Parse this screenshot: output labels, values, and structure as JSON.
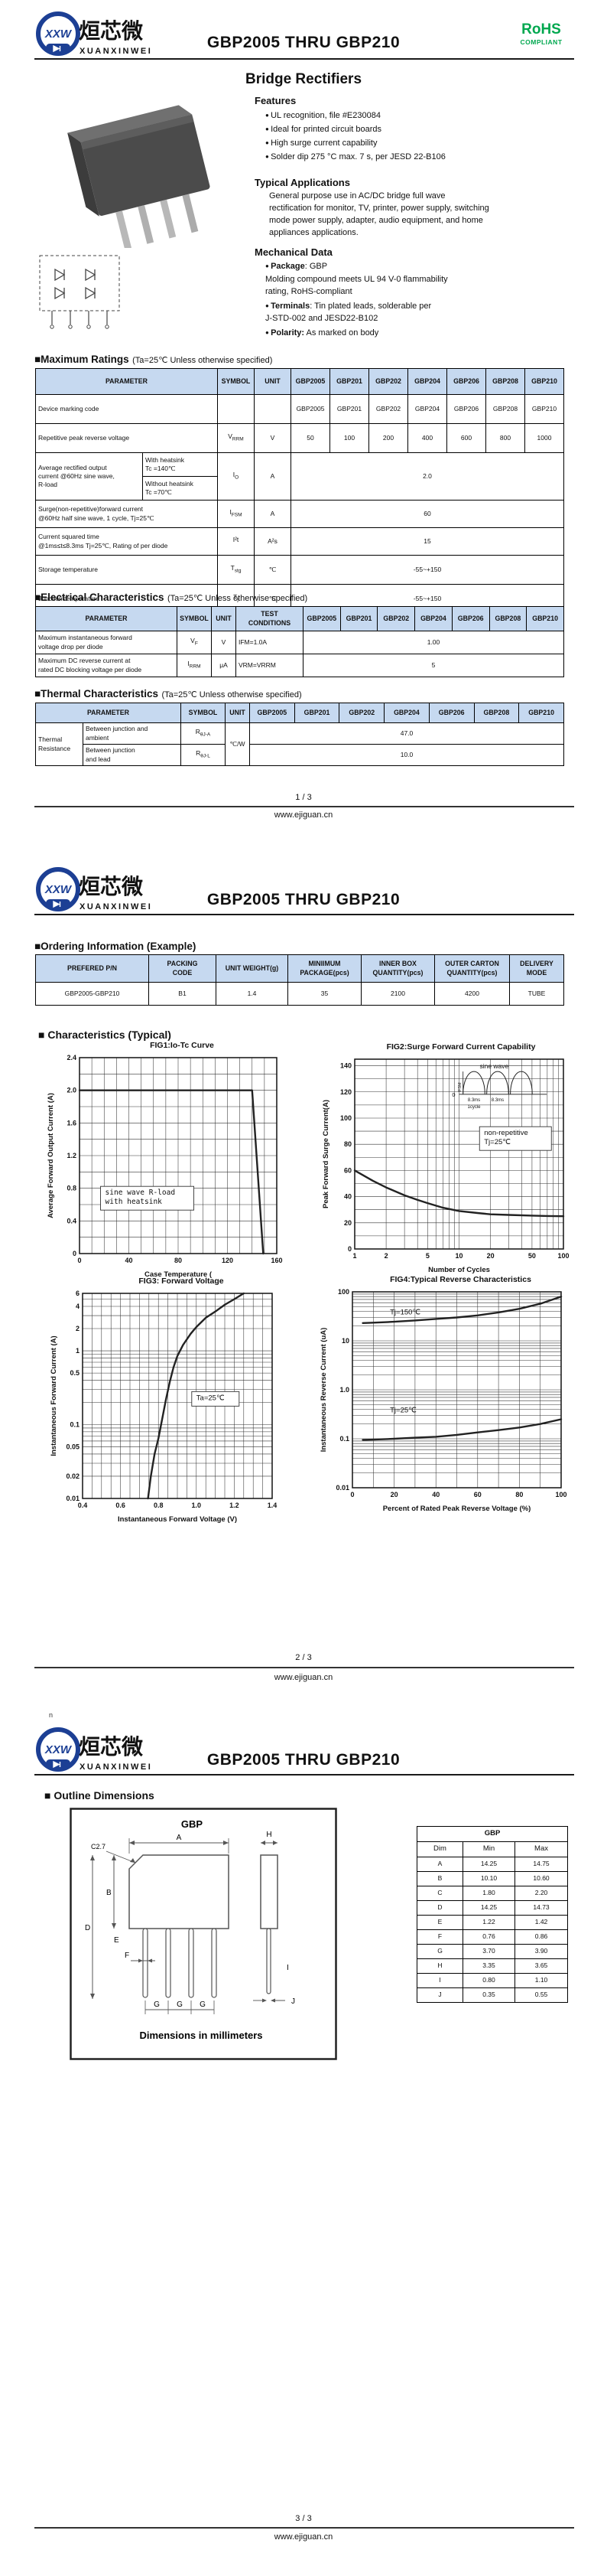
{
  "brand": {
    "badge": "XXW",
    "cn": "烜芯微",
    "en": "XUANXINWEI",
    "title": "GBP2005 THRU GBP210",
    "rohs": "RoHS",
    "compliant": "COMPLIANT"
  },
  "footer": {
    "pages": [
      "1 / 3",
      "2 / 3",
      "3 / 3"
    ],
    "site": "www.ejiguan.cn"
  },
  "parts": [
    "GBP2005",
    "GBP201",
    "GBP202",
    "GBP204",
    "GBP206",
    "GBP208",
    "GBP210"
  ],
  "tables": {
    "headers": {
      "parameter": "PARAMETER",
      "symbol": "SYMBOL",
      "unit": "UNIT",
      "test": "TEST\nCONDITIONS"
    }
  },
  "page1": {
    "main_title": "Bridge Rectifiers",
    "features": {
      "heading": "Features",
      "items": [
        "UL recognition, file #E230084",
        "Ideal for printed circuit boards",
        "High surge current capability",
        "Solder dip 275 °C max. 7 s, per JESD 22-B106"
      ]
    },
    "typical_applications": {
      "heading": "Typical Applications",
      "text": "General purpose use in AC/DC bridge full wave\nrectification for monitor, TV, printer, power supply, switching\n mode power supply, adapter, audio equipment, and home\nappliances applications."
    },
    "mechanical_data": {
      "heading": "Mechanical Data",
      "items": [
        {
          "label": "Package",
          "rest": ": GBP\nMolding compound meets UL 94 V-0 flammability\nrating, RoHS-compliant"
        },
        {
          "label": "Terminals",
          "rest": ": Tin plated leads, solderable  per\nJ-STD-002 and JESD22-B102"
        },
        {
          "label": "Polarity:",
          "rest": " As marked on body"
        }
      ]
    },
    "max_ratings": {
      "heading": "■Maximum Ratings",
      "cond": "(Ta=25℃ Unless otherwise specified)",
      "rows": {
        "marking": {
          "param": "Device marking code",
          "values": [
            "GBP2005",
            "GBP201",
            "GBP202",
            "GBP204",
            "GBP206",
            "GBP208",
            "GBP210"
          ]
        },
        "vrrm": {
          "param": "Repetitive peak reverse voltage",
          "sym": {
            "b": "V",
            "s": "RRM"
          },
          "unit": "V",
          "values": [
            "50",
            "100",
            "200",
            "400",
            "600",
            "800",
            "1000"
          ]
        },
        "io": {
          "param": "Average rectified output\ncurrent @60Hz sine wave,\nR-load",
          "cond1": "With heatsink\nTc =140℃",
          "cond2": "Without heatsink\nTc =70℃",
          "sym": {
            "b": "I",
            "s": "O"
          },
          "unit": "A",
          "value": "2.0"
        },
        "ifsm": {
          "param": "Surge(non-repetitive)forward current\n@60Hz half sine wave, 1 cycle, Tj=25℃",
          "sym": {
            "b": "I",
            "s": "FSM"
          },
          "unit": "A",
          "value": "60"
        },
        "i2t": {
          "param": "Current squared time\n@1ms≤t≤8.3ms Tj=25℃, Rating of per diode",
          "sym": {
            "b": "I²t",
            "s": ""
          },
          "unit": "A²s",
          "value": "15"
        },
        "tstg": {
          "param": "Storage temperature",
          "sym": {
            "b": "T",
            "s": "stg"
          },
          "unit": "℃",
          "value": "-55~+150"
        },
        "tj": {
          "param": "Junction temperature",
          "sym": {
            "b": "T",
            "s": "j"
          },
          "unit": "℃",
          "value": "-55~+150"
        }
      }
    },
    "electrical": {
      "heading": "■Electrical Characteristics",
      "cond": "(Ta=25℃ Unless otherwise specified)",
      "rows": [
        {
          "param": "Maximum instantaneous forward\nvoltage drop per diode",
          "sym": {
            "b": "V",
            "s": "F"
          },
          "unit": "V",
          "test": "IFM=1.0A",
          "value": "1.00"
        },
        {
          "param": "Maximum DC reverse current at\nrated DC blocking voltage per diode",
          "sym": {
            "b": "I",
            "s": "RRM"
          },
          "unit": "μA",
          "test": "VRM=VRRM",
          "value": "5"
        }
      ]
    },
    "thermal": {
      "heading": "■Thermal Characteristics",
      "cond": "(Ta=25℃ Unless otherwise specified)",
      "group": "Thermal\nResistance",
      "unit": "℃/W",
      "rows": [
        {
          "param": "Between junction and\nambient",
          "sym": {
            "b": "R",
            "s": "θJ-A"
          },
          "value": "47.0"
        },
        {
          "param": "Between junction\nand lead",
          "sym": {
            "b": "R",
            "s": "θJ-L"
          },
          "value": "10.0"
        }
      ]
    }
  },
  "page2": {
    "ordering": {
      "heading": "■Ordering Information (Example)",
      "headers": [
        "PREFERED P/N",
        "PACKING\nCODE",
        "UNIT WEIGHT(g)",
        "MINIIMUM\nPACKAGE(pcs)",
        "INNER BOX\nQUANTITY(pcs)",
        "OUTER CARTON\nQUANTITY(pcs)",
        "DELIVERY MODE"
      ],
      "row": [
        "GBP2005-GBP210",
        "B1",
        "1.4",
        "35",
        "2100",
        "4200",
        "TUBE"
      ]
    },
    "characteristics_heading": "■ Characteristics (Typical)"
  },
  "page3": {
    "stray": "n",
    "outline": {
      "heading": "■ Outline Dimensions",
      "labels": {
        "pkg": "GBP",
        "a": "A",
        "b": "B",
        "c": "C2.7",
        "d": "D",
        "e": "E",
        "f": "F",
        "g": "G",
        "h": "H",
        "i": "I",
        "j": "J",
        "caption": "Dimensions in millimeters"
      },
      "dim_table": {
        "title": "GBP",
        "headers": [
          "Dim",
          "Min",
          "Max"
        ],
        "rows": [
          {
            "d": "A",
            "min": "14.25",
            "max": "14.75"
          },
          {
            "d": "B",
            "min": "10.10",
            "max": "10.60"
          },
          {
            "d": "C",
            "min": "1.80",
            "max": "2.20"
          },
          {
            "d": "D",
            "min": "14.25",
            "max": "14.73"
          },
          {
            "d": "E",
            "min": "1.22",
            "max": "1.42"
          },
          {
            "d": "F",
            "min": "0.76",
            "max": "0.86"
          },
          {
            "d": "G",
            "min": "3.70",
            "max": "3.90"
          },
          {
            "d": "H",
            "min": "3.35",
            "max": "3.65"
          },
          {
            "d": "I",
            "min": "0.80",
            "max": "1.10"
          },
          {
            "d": "J",
            "min": "0.35",
            "max": "0.55"
          }
        ]
      }
    }
  },
  "chart_data": [
    {
      "id": "fig1",
      "type": "line",
      "title": "FIG1:Io-Tc Curve",
      "xlabel": "Case Temperature (",
      "ylabel": "Average Forward Output Current (A)",
      "xlim": [
        0,
        160
      ],
      "ylim": [
        0,
        2.4
      ],
      "x_minor": 10,
      "y_minor": 0.2,
      "legend_position": "none",
      "grid": true,
      "x_ticks": [
        [
          0,
          "0"
        ],
        [
          40,
          "40"
        ],
        [
          80,
          "80"
        ],
        [
          120,
          "120"
        ],
        [
          160,
          "160"
        ]
      ],
      "y_ticks": [
        [
          0,
          "0"
        ],
        [
          0.4,
          "0.4"
        ],
        [
          0.8,
          "0.8"
        ],
        [
          1.2,
          "1.2"
        ],
        [
          1.6,
          "1.6"
        ],
        [
          2,
          "2.0"
        ],
        [
          2.4,
          "2.4"
        ]
      ],
      "series": [
        {
          "name": "Io",
          "points": [
            [
              0,
              2
            ],
            [
              140,
              2
            ],
            [
              149,
              0
            ]
          ]
        }
      ],
      "annotations": [
        {
          "lines": [
            "sine wave R-load",
            "with heatsink"
          ],
          "xf": 0.13,
          "yf": 0.7,
          "box": true,
          "w": 122,
          "mono": true
        }
      ]
    },
    {
      "id": "fig2",
      "type": "line",
      "title": "FIG2:Surge Forward Current Capability",
      "xlabel": "Number of Cycles",
      "ylabel": "Peak Forward Surge Current(A)",
      "xlog": true,
      "xlim": [
        1,
        100
      ],
      "ylim": [
        0,
        145
      ],
      "y_minor": 10,
      "grid": true,
      "x_ticks": [
        [
          1,
          "1"
        ],
        [
          2,
          "2"
        ],
        [
          5,
          "5"
        ],
        [
          10,
          "10"
        ],
        [
          20,
          "20"
        ],
        [
          50,
          "50"
        ],
        [
          100,
          "100"
        ]
      ],
      "y_ticks": [
        [
          0,
          "0"
        ],
        [
          20,
          "20"
        ],
        [
          40,
          "40"
        ],
        [
          60,
          "60"
        ],
        [
          80,
          "80"
        ],
        [
          100,
          "100"
        ],
        [
          120,
          "120"
        ],
        [
          140,
          "140"
        ]
      ],
      "series": [
        {
          "name": "IFSM",
          "points": [
            [
              1,
              60
            ],
            [
              1.5,
              52
            ],
            [
              2,
              47
            ],
            [
              3,
              41
            ],
            [
              4,
              37.5
            ],
            [
              5,
              35
            ],
            [
              7,
              31.5
            ],
            [
              10,
              29
            ],
            [
              15,
              27.5
            ],
            [
              20,
              26.5
            ],
            [
              30,
              26
            ],
            [
              50,
              25.5
            ],
            [
              70,
              25.2
            ],
            [
              100,
              25
            ]
          ]
        }
      ],
      "annotations": [
        {
          "lines": [
            "non-repetitive",
            "Tj=25℃"
          ],
          "xf": 0.62,
          "yf": 0.4,
          "box": true,
          "w": 94
        }
      ],
      "wave": {
        "xf": 0.5,
        "yf": 0.02,
        "wf": 0.42,
        "hf": 0.3,
        "title": "sine wave",
        "amp": "IFSM",
        "t1": "8.3ms",
        "t2": "8.3ms",
        "cycle": "1cycle",
        "zero": "0"
      }
    },
    {
      "id": "fig3",
      "type": "line",
      "title": "FIG3: Forward Voltage",
      "xlabel": "Instantaneous Forward Voltage (V)",
      "ylabel": "Instantaneous Forward Current (A)",
      "xlim": [
        0.4,
        1.4
      ],
      "x_minor": 0.05,
      "ylog": true,
      "ylim": [
        0.01,
        6
      ],
      "grid": true,
      "x_ticks": [
        [
          0.4,
          "0.4"
        ],
        [
          0.6,
          "0.6"
        ],
        [
          0.8,
          "0.8"
        ],
        [
          1,
          "1.0"
        ],
        [
          1.2,
          "1.2"
        ],
        [
          1.4,
          "1.4"
        ]
      ],
      "y_ticks": [
        [
          6,
          "6"
        ],
        [
          4,
          "4"
        ],
        [
          2,
          "2"
        ],
        [
          1,
          "1"
        ],
        [
          0.5,
          "0.5"
        ],
        [
          0.1,
          "0.1"
        ],
        [
          0.05,
          "0.05"
        ],
        [
          0.02,
          "0.02"
        ],
        [
          0.01,
          "0.01"
        ]
      ],
      "series": [
        {
          "name": "VF",
          "points": [
            [
              0.745,
              0.01
            ],
            [
              0.76,
              0.02
            ],
            [
              0.78,
              0.04
            ],
            [
              0.8,
              0.065
            ],
            [
              0.82,
              0.12
            ],
            [
              0.84,
              0.22
            ],
            [
              0.86,
              0.38
            ],
            [
              0.88,
              0.6
            ],
            [
              0.9,
              0.85
            ],
            [
              0.93,
              1.2
            ],
            [
              0.97,
              1.7
            ],
            [
              1,
              2.1
            ],
            [
              1.05,
              2.8
            ],
            [
              1.1,
              3.4
            ],
            [
              1.15,
              4.2
            ],
            [
              1.2,
              5
            ],
            [
              1.25,
              6
            ]
          ]
        }
      ],
      "annotations": [
        {
          "lines": [
            "Ta=25℃"
          ],
          "xf": 0.6,
          "yf": 0.52,
          "box": true,
          "w": 62
        }
      ]
    },
    {
      "id": "fig4",
      "type": "line",
      "title": "FIG4:Typical Reverse Characteristics",
      "xlabel": "Percent of Rated Peak Reverse Voltage  (%)",
      "ylabel": "Instantaneous Reverse Current (uA)",
      "xlim": [
        0,
        100
      ],
      "x_minor": 10,
      "ylog": true,
      "ylim": [
        0.01,
        100
      ],
      "grid": true,
      "x_ticks": [
        [
          0,
          "0"
        ],
        [
          20,
          "20"
        ],
        [
          40,
          "40"
        ],
        [
          60,
          "60"
        ],
        [
          80,
          "80"
        ],
        [
          100,
          "100"
        ]
      ],
      "y_ticks": [
        [
          100,
          "100"
        ],
        [
          10,
          "10"
        ],
        [
          1,
          "1.0"
        ],
        [
          0.1,
          "0.1"
        ],
        [
          0.01,
          "0.01"
        ]
      ],
      "series": [
        {
          "name": "Tj=150℃",
          "points": [
            [
              5,
              23
            ],
            [
              10,
              23.5
            ],
            [
              20,
              24.5
            ],
            [
              30,
              26
            ],
            [
              40,
              28
            ],
            [
              50,
              30
            ],
            [
              60,
              33
            ],
            [
              70,
              38
            ],
            [
              80,
              45
            ],
            [
              90,
              57
            ],
            [
              100,
              80
            ]
          ]
        },
        {
          "name": "Tj=25℃",
          "points": [
            [
              5,
              0.095
            ],
            [
              10,
              0.096
            ],
            [
              20,
              0.1
            ],
            [
              30,
              0.105
            ],
            [
              40,
              0.11
            ],
            [
              50,
              0.12
            ],
            [
              60,
              0.135
            ],
            [
              70,
              0.15
            ],
            [
              80,
              0.17
            ],
            [
              90,
              0.2
            ],
            [
              100,
              0.25
            ]
          ]
        }
      ],
      "annotations": [
        {
          "lines": [
            "Tj=150℃"
          ],
          "xf": 0.18,
          "yf": 0.115
        },
        {
          "lines": [
            "Tj=25℃"
          ],
          "xf": 0.18,
          "yf": 0.615
        }
      ]
    }
  ]
}
